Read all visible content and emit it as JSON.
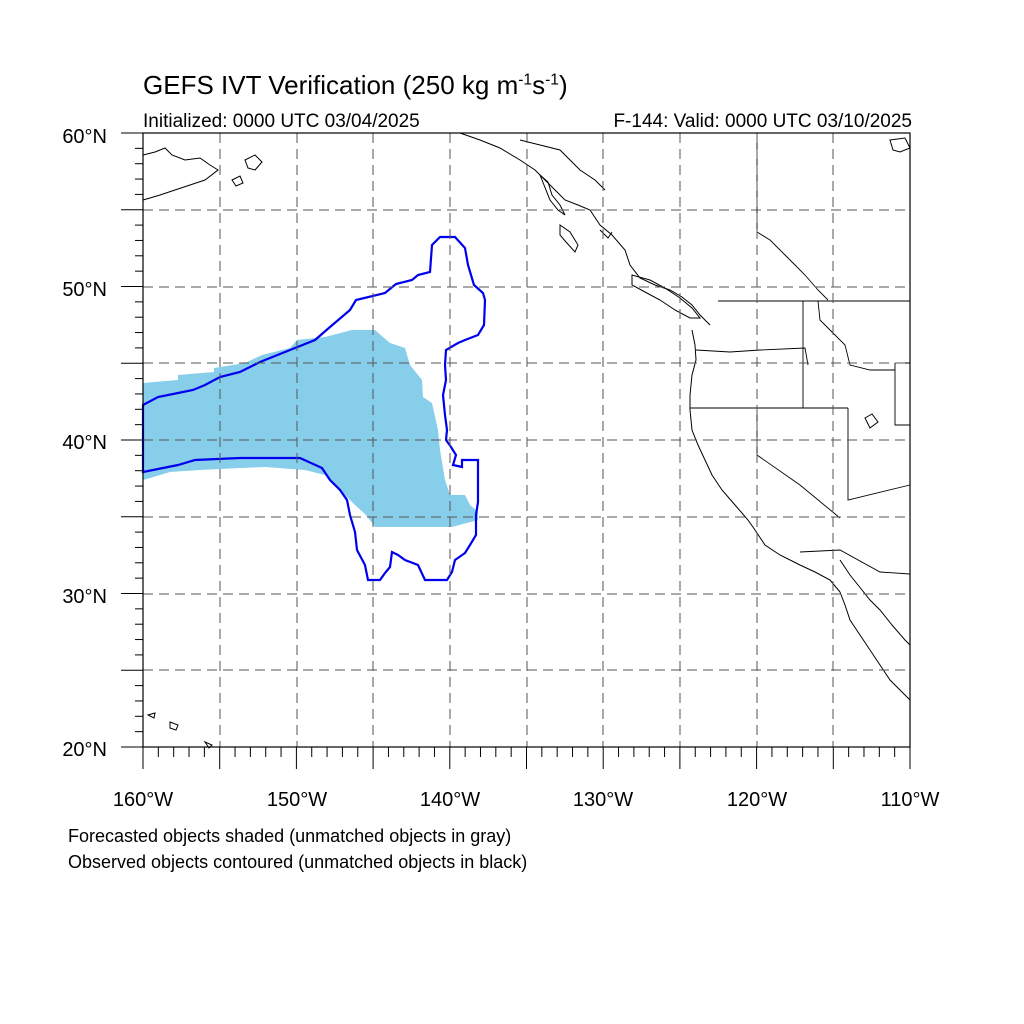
{
  "title": {
    "main": "GEFS IVT Verification (250 kg m",
    "exp1": "-1",
    "mid": "s",
    "exp2": "-1",
    "end": ")"
  },
  "initialized": "Initialized: 0000 UTC 03/04/2025",
  "valid": "F-144: Valid: 0000 UTC 03/10/2025",
  "footer": {
    "line1": "Forecasted objects shaded (unmatched objects in gray)",
    "line2": "Observed objects contoured (unmatched objects in black)"
  },
  "map": {
    "lat_labels": [
      "60°N",
      "50°N",
      "40°N",
      "30°N",
      "20°N"
    ],
    "lon_labels": [
      "160°W",
      "150°W",
      "140°W",
      "130°W",
      "120°W",
      "110°W"
    ],
    "lat_range": [
      20,
      60
    ],
    "lon_range": [
      -160,
      -110
    ],
    "grid": "dashed every 5°",
    "colors": {
      "forecast_fill": "#87ceeb",
      "observed_contour": "#0000ee",
      "coastline": "#000000",
      "grid": "#555555"
    }
  }
}
